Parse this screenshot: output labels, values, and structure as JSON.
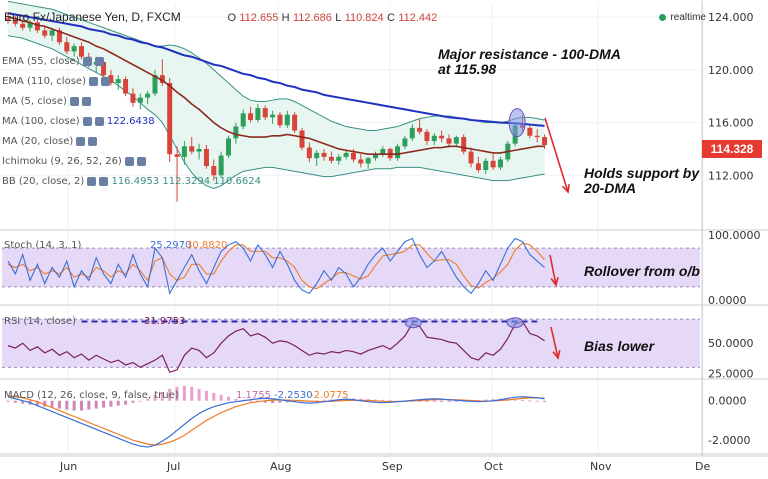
{
  "header": {
    "symbol": "Euro Fx/Japanese Yen, D, FXCM",
    "o_label": "O",
    "o": "112.655",
    "h_label": "H",
    "h": "112.686",
    "l_label": "L",
    "l": "110.824",
    "c_label": "C",
    "c": "112.442"
  },
  "realtime_label": "realtime",
  "last_price": "114.328",
  "indicators": [
    {
      "label": "EMA (55, close)"
    },
    {
      "label": "EMA (110, close)"
    },
    {
      "label": "MA (5, close)"
    },
    {
      "label": "MA (100, close)",
      "value": "122.6438"
    },
    {
      "label": "MA (20, close)"
    },
    {
      "label": "Ichimoku (9, 26, 52, 26)"
    },
    {
      "label": "BB (20, close, 2)",
      "values": [
        "116.4953",
        "112.3294",
        "110.6624"
      ]
    }
  ],
  "annotations": {
    "resistance": [
      "Major resistance - 100-DMA",
      "at 115.98"
    ],
    "support": [
      "Holds support by",
      "20-DMA"
    ],
    "stoch": "Rollover from o/b",
    "rsi": "Bias lower"
  },
  "colors": {
    "up_candle": "#2f9e5a",
    "down_candle": "#d6443a",
    "ma100": "#2030c0",
    "ma20": "#8b2a1e",
    "bb": "#3a8f86",
    "bb_fill": "#e8f6f2",
    "panel_fill": "#e6d9f7",
    "osc_line": "#7a2060",
    "stoch_k": "#3a6fd6",
    "stoch_d": "#ef7c2a",
    "arrow": "#e02a2a",
    "ellipse_fill": "#7f96e6",
    "ellipse_stroke": "#6a56b8"
  },
  "chart_data": [
    {
      "type": "candlestick",
      "title": "Euro Fx/Japanese Yen, D, FXCM",
      "x_labels": [
        "Jun",
        "Jul",
        "Aug",
        "Sep",
        "Oct",
        "Nov",
        "De"
      ],
      "y_ticks": [
        "124.000",
        "120.000",
        "116.000",
        "112.000"
      ],
      "ylim": [
        108,
        125
      ],
      "ohlc": [
        [
          123.9,
          124.3,
          123.5,
          123.8
        ],
        [
          123.8,
          124.1,
          123.3,
          123.5
        ],
        [
          123.5,
          123.9,
          123.0,
          123.2
        ],
        [
          123.2,
          123.8,
          122.9,
          123.6
        ],
        [
          123.6,
          123.9,
          122.8,
          123.0
        ],
        [
          123.0,
          123.4,
          122.4,
          122.6
        ],
        [
          122.6,
          123.2,
          122.2,
          123.0
        ],
        [
          123.0,
          123.2,
          121.9,
          122.1
        ],
        [
          122.1,
          122.5,
          121.2,
          121.4
        ],
        [
          121.4,
          122.0,
          121.0,
          121.8
        ],
        [
          121.8,
          122.1,
          120.8,
          121.0
        ],
        [
          121.0,
          121.3,
          120.2,
          120.4
        ],
        [
          120.4,
          121.0,
          119.8,
          120.6
        ],
        [
          120.6,
          120.9,
          119.4,
          119.6
        ],
        [
          119.6,
          120.0,
          118.8,
          119.0
        ],
        [
          119.0,
          119.6,
          118.5,
          119.3
        ],
        [
          119.3,
          119.5,
          118.0,
          118.2
        ],
        [
          118.2,
          118.6,
          117.2,
          117.5
        ],
        [
          117.5,
          118.2,
          117.0,
          117.9
        ],
        [
          117.9,
          118.4,
          117.4,
          118.2
        ],
        [
          118.2,
          120.0,
          118.0,
          119.6
        ],
        [
          119.6,
          120.8,
          118.8,
          119.0
        ],
        [
          119.0,
          119.4,
          113.0,
          113.6
        ],
        [
          113.6,
          114.2,
          110.0,
          113.4
        ],
        [
          113.4,
          114.6,
          112.8,
          114.2
        ],
        [
          114.2,
          114.9,
          113.6,
          113.8
        ],
        [
          113.8,
          114.4,
          113.2,
          114.0
        ],
        [
          114.0,
          114.3,
          112.5,
          112.7
        ],
        [
          112.7,
          113.2,
          111.6,
          112.0
        ],
        [
          112.0,
          113.8,
          111.8,
          113.5
        ],
        [
          113.5,
          115.0,
          113.3,
          114.8
        ],
        [
          114.8,
          116.0,
          114.4,
          115.7
        ],
        [
          115.7,
          117.0,
          115.5,
          116.7
        ],
        [
          116.7,
          117.2,
          116.0,
          116.2
        ],
        [
          116.2,
          117.4,
          116.0,
          117.1
        ],
        [
          117.1,
          117.3,
          116.2,
          116.4
        ],
        [
          116.4,
          116.9,
          115.9,
          116.6
        ],
        [
          116.6,
          116.8,
          115.6,
          115.8
        ],
        [
          115.8,
          116.9,
          115.6,
          116.6
        ],
        [
          116.6,
          116.8,
          115.2,
          115.4
        ],
        [
          115.4,
          115.6,
          113.9,
          114.1
        ],
        [
          114.1,
          114.5,
          113.0,
          113.3
        ],
        [
          113.3,
          113.9,
          112.7,
          113.7
        ],
        [
          113.7,
          114.0,
          113.1,
          113.4
        ],
        [
          113.4,
          113.8,
          112.9,
          113.1
        ],
        [
          113.1,
          113.6,
          112.8,
          113.4
        ],
        [
          113.4,
          113.9,
          113.2,
          113.7
        ],
        [
          113.7,
          114.0,
          113.0,
          113.2
        ],
        [
          113.2,
          113.6,
          112.6,
          112.9
        ],
        [
          112.9,
          113.4,
          112.5,
          113.3
        ],
        [
          113.3,
          113.8,
          113.1,
          113.6
        ],
        [
          113.6,
          114.2,
          113.4,
          114.0
        ],
        [
          114.0,
          114.1,
          113.1,
          113.3
        ],
        [
          113.3,
          114.4,
          113.1,
          114.2
        ],
        [
          114.2,
          115.0,
          114.0,
          114.8
        ],
        [
          114.8,
          115.9,
          114.6,
          115.6
        ],
        [
          115.6,
          116.3,
          115.1,
          115.3
        ],
        [
          115.3,
          115.5,
          114.3,
          114.6
        ],
        [
          114.6,
          115.2,
          114.3,
          115.0
        ],
        [
          115.0,
          115.4,
          114.5,
          114.8
        ],
        [
          114.8,
          115.1,
          114.1,
          114.4
        ],
        [
          114.4,
          115.0,
          114.2,
          114.9
        ],
        [
          114.9,
          115.1,
          113.6,
          113.8
        ],
        [
          113.8,
          114.1,
          112.6,
          112.9
        ],
        [
          112.9,
          113.4,
          112.2,
          112.4
        ],
        [
          112.4,
          113.3,
          112.1,
          113.1
        ],
        [
          113.1,
          113.6,
          112.4,
          112.6
        ],
        [
          112.6,
          113.4,
          112.4,
          113.2
        ],
        [
          113.2,
          114.6,
          113.0,
          114.4
        ],
        [
          114.4,
          116.0,
          114.2,
          115.8
        ],
        [
          115.8,
          116.6,
          115.3,
          115.6
        ],
        [
          115.6,
          115.9,
          114.8,
          115.0
        ],
        [
          115.0,
          115.5,
          114.5,
          114.9
        ],
        [
          114.9,
          115.1,
          114.0,
          114.3
        ]
      ],
      "ma100": [
        124.3,
        124.2,
        124.1,
        124.0,
        123.9,
        123.8,
        123.7,
        123.6,
        123.5,
        123.4,
        123.3,
        123.1,
        123.0,
        122.9,
        122.7,
        122.6,
        122.4,
        122.3,
        122.1,
        122.0,
        121.8,
        121.7,
        121.5,
        121.3,
        121.1,
        121.0,
        120.8,
        120.6,
        120.4,
        120.3,
        120.1,
        119.9,
        119.7,
        119.6,
        119.4,
        119.3,
        119.1,
        119.0,
        118.8,
        118.7,
        118.5,
        118.4,
        118.3,
        118.1,
        118.0,
        117.9,
        117.8,
        117.7,
        117.6,
        117.5,
        117.4,
        117.3,
        117.2,
        117.1,
        117.0,
        116.9,
        116.8,
        116.7,
        116.6,
        116.5,
        116.4,
        116.35,
        116.3,
        116.2,
        116.15,
        116.1,
        116.05,
        116.0,
        115.98,
        115.95,
        115.9,
        115.85,
        115.8,
        115.75
      ],
      "ma20": [
        124.0,
        123.9,
        123.7,
        123.6,
        123.4,
        123.3,
        123.1,
        122.9,
        122.7,
        122.5,
        122.3,
        122.1,
        121.8,
        121.6,
        121.3,
        121.0,
        120.7,
        120.4,
        120.1,
        119.8,
        119.5,
        119.2,
        118.8,
        118.3,
        117.9,
        117.4,
        117.0,
        116.5,
        116.0,
        115.6,
        115.3,
        115.1,
        115.0,
        114.9,
        114.9,
        114.9,
        115.0,
        115.0,
        115.1,
        115.0,
        114.9,
        114.8,
        114.6,
        114.4,
        114.2,
        114.0,
        113.9,
        113.8,
        113.7,
        113.6,
        113.6,
        113.6,
        113.6,
        113.6,
        113.7,
        113.8,
        113.9,
        114.0,
        114.1,
        114.1,
        114.2,
        114.2,
        114.1,
        114.0,
        113.9,
        113.8,
        113.7,
        113.7,
        113.8,
        113.9,
        114.0,
        114.1,
        114.2,
        114.2
      ],
      "bb_upper": [
        125.2,
        125.1,
        125.0,
        124.9,
        124.8,
        124.7,
        124.6,
        124.4,
        124.2,
        124.0,
        123.8,
        123.6,
        123.4,
        123.2,
        123.0,
        122.8,
        122.6,
        122.4,
        122.2,
        122.0,
        121.8,
        121.8,
        121.9,
        121.8,
        121.6,
        121.3,
        120.9,
        120.5,
        120.0,
        119.5,
        119.0,
        118.5,
        118.0,
        117.7,
        117.6,
        117.6,
        117.7,
        117.8,
        117.8,
        117.6,
        117.3,
        117.0,
        116.7,
        116.4,
        116.1,
        115.9,
        115.7,
        115.6,
        115.5,
        115.4,
        115.4,
        115.5,
        115.6,
        115.7,
        115.9,
        116.1,
        116.3,
        116.4,
        116.5,
        116.5,
        116.5,
        116.4,
        116.3,
        116.2,
        116.1,
        116.0,
        116.0,
        116.0,
        116.1,
        116.3,
        116.4,
        116.4,
        116.3,
        116.2
      ],
      "bb_lower": [
        122.6,
        122.5,
        122.4,
        122.2,
        122.0,
        121.8,
        121.6,
        121.3,
        121.0,
        120.7,
        120.4,
        120.1,
        119.8,
        119.5,
        119.2,
        118.8,
        118.4,
        118.0,
        117.5,
        117.0,
        116.6,
        116.0,
        115.0,
        114.0,
        113.0,
        112.2,
        111.6,
        111.2,
        111.0,
        111.2,
        111.6,
        112.0,
        112.3,
        112.4,
        112.5,
        112.6,
        112.6,
        112.5,
        112.4,
        112.3,
        112.2,
        112.1,
        112.0,
        111.9,
        111.9,
        112.0,
        112.1,
        112.2,
        112.3,
        112.4,
        112.5,
        112.5,
        112.5,
        112.6,
        112.6,
        112.6,
        112.6,
        112.5,
        112.4,
        112.3,
        112.2,
        112.1,
        112.0,
        111.9,
        111.8,
        111.7,
        111.6,
        111.6,
        111.6,
        111.7,
        111.8,
        111.9,
        112.0,
        112.1
      ]
    },
    {
      "type": "line",
      "title": "Stoch (14, 3, 1)",
      "values_label": [
        "25.2970",
        "30.8820"
      ],
      "y_ticks": [
        "100.0000",
        "0.0000"
      ],
      "ylim": [
        -5,
        105
      ],
      "band": [
        20,
        80
      ],
      "k": [
        60,
        40,
        70,
        30,
        55,
        25,
        50,
        35,
        60,
        20,
        45,
        30,
        65,
        40,
        25,
        55,
        35,
        70,
        40,
        20,
        80,
        65,
        10,
        30,
        50,
        70,
        45,
        25,
        50,
        75,
        85,
        90,
        80,
        60,
        85,
        70,
        50,
        75,
        55,
        30,
        15,
        10,
        25,
        45,
        30,
        50,
        40,
        20,
        35,
        55,
        70,
        80,
        60,
        75,
        90,
        95,
        70,
        50,
        60,
        75,
        55,
        35,
        20,
        10,
        25,
        45,
        30,
        55,
        80,
        95,
        90,
        70,
        60,
        50
      ],
      "d": [
        55,
        50,
        55,
        45,
        50,
        40,
        45,
        40,
        50,
        35,
        40,
        35,
        50,
        45,
        35,
        45,
        40,
        55,
        45,
        30,
        60,
        65,
        40,
        30,
        35,
        55,
        55,
        40,
        40,
        60,
        75,
        85,
        85,
        75,
        75,
        75,
        65,
        65,
        60,
        50,
        30,
        20,
        17,
        25,
        33,
        42,
        42,
        37,
        32,
        37,
        53,
        68,
        70,
        72,
        75,
        85,
        85,
        72,
        60,
        62,
        62,
        55,
        37,
        22,
        18,
        27,
        33,
        43,
        55,
        77,
        88,
        85,
        75,
        62
      ]
    },
    {
      "type": "line",
      "title": "RSI (14, close)",
      "value": "31.9753",
      "y_ticks": [
        "50.0000",
        "25.0000"
      ],
      "ylim": [
        22,
        80
      ],
      "band": [
        30,
        70
      ],
      "values": [
        48,
        46,
        50,
        44,
        47,
        42,
        45,
        40,
        43,
        38,
        41,
        36,
        40,
        37,
        34,
        36,
        32,
        34,
        30,
        33,
        36,
        40,
        26,
        28,
        40,
        46,
        44,
        38,
        42,
        50,
        56,
        60,
        62,
        56,
        58,
        55,
        50,
        52,
        51,
        48,
        44,
        40,
        42,
        41,
        43,
        42,
        44,
        43,
        41,
        44,
        46,
        48,
        45,
        50,
        56,
        66,
        64,
        55,
        54,
        53,
        51,
        50,
        44,
        38,
        36,
        42,
        40,
        45,
        54,
        66,
        68,
        58,
        56,
        52
      ]
    },
    {
      "type": "bar",
      "title": "MACD (12, 26, close, 9, false, true)",
      "values_label": [
        "1.1755",
        "-2.2530",
        "-2.0775"
      ],
      "y_ticks": [
        "0.0000",
        "-2.0000"
      ],
      "ylim": [
        -2.6,
        1.0
      ],
      "histogram": [
        -0.05,
        -0.1,
        -0.15,
        -0.2,
        -0.25,
        -0.3,
        -0.35,
        -0.4,
        -0.45,
        -0.5,
        -0.5,
        -0.45,
        -0.4,
        -0.35,
        -0.3,
        -0.25,
        -0.2,
        -0.1,
        0.0,
        0.1,
        0.3,
        0.45,
        0.6,
        0.7,
        0.75,
        0.7,
        0.6,
        0.5,
        0.4,
        0.3,
        0.2,
        0.1,
        0.05,
        0.0,
        -0.05,
        -0.1,
        -0.12,
        -0.1,
        -0.08,
        -0.05,
        -0.03,
        0.0,
        0.02,
        0.05,
        0.07,
        0.08,
        0.1,
        0.12,
        0.1,
        0.08,
        0.06,
        0.04,
        0.02,
        0.0,
        -0.02,
        -0.04,
        -0.05,
        -0.06,
        -0.05,
        -0.04,
        -0.03,
        -0.02,
        0.0,
        0.02,
        0.04,
        0.06,
        0.08,
        0.1,
        0.08,
        0.06,
        0.04,
        0.02,
        0.0,
        -0.02
      ],
      "macd": [
        0.2,
        0.1,
        0.0,
        -0.1,
        -0.25,
        -0.4,
        -0.55,
        -0.7,
        -0.85,
        -1.0,
        -1.15,
        -1.3,
        -1.45,
        -1.6,
        -1.75,
        -1.9,
        -2.05,
        -2.2,
        -2.3,
        -2.35,
        -2.25,
        -2.05,
        -1.8,
        -1.5,
        -1.2,
        -0.9,
        -0.65,
        -0.45,
        -0.3,
        -0.2,
        -0.1,
        -0.05,
        0.0,
        0.05,
        0.1,
        0.12,
        0.1,
        0.05,
        0.0,
        -0.05,
        -0.1,
        -0.12,
        -0.1,
        -0.05,
        0.0,
        0.05,
        0.08,
        0.05,
        0.0,
        -0.05,
        -0.08,
        -0.1,
        -0.08,
        -0.05,
        -0.02,
        0.02,
        0.05,
        0.08,
        0.1,
        0.08,
        0.05,
        0.02,
        0.0,
        -0.03,
        -0.05,
        -0.03,
        0.0,
        0.05,
        0.12,
        0.18,
        0.2,
        0.18,
        0.15,
        0.1
      ],
      "signal": [
        0.25,
        0.2,
        0.15,
        0.05,
        -0.05,
        -0.2,
        -0.35,
        -0.5,
        -0.65,
        -0.8,
        -0.95,
        -1.1,
        -1.25,
        -1.4,
        -1.55,
        -1.7,
        -1.85,
        -2.0,
        -2.1,
        -2.2,
        -2.25,
        -2.2,
        -2.1,
        -1.95,
        -1.75,
        -1.5,
        -1.25,
        -1.0,
        -0.8,
        -0.6,
        -0.45,
        -0.3,
        -0.2,
        -0.1,
        -0.05,
        0.0,
        0.03,
        0.04,
        0.03,
        0.02,
        0.0,
        -0.02,
        -0.04,
        -0.04,
        -0.03,
        -0.01,
        0.01,
        0.02,
        0.02,
        0.01,
        -0.01,
        -0.03,
        -0.04,
        -0.04,
        -0.03,
        -0.01,
        0.01,
        0.03,
        0.05,
        0.06,
        0.06,
        0.05,
        0.03,
        0.01,
        -0.01,
        -0.02,
        -0.01,
        0.01,
        0.04,
        0.08,
        0.12,
        0.14,
        0.14,
        0.13
      ]
    }
  ]
}
